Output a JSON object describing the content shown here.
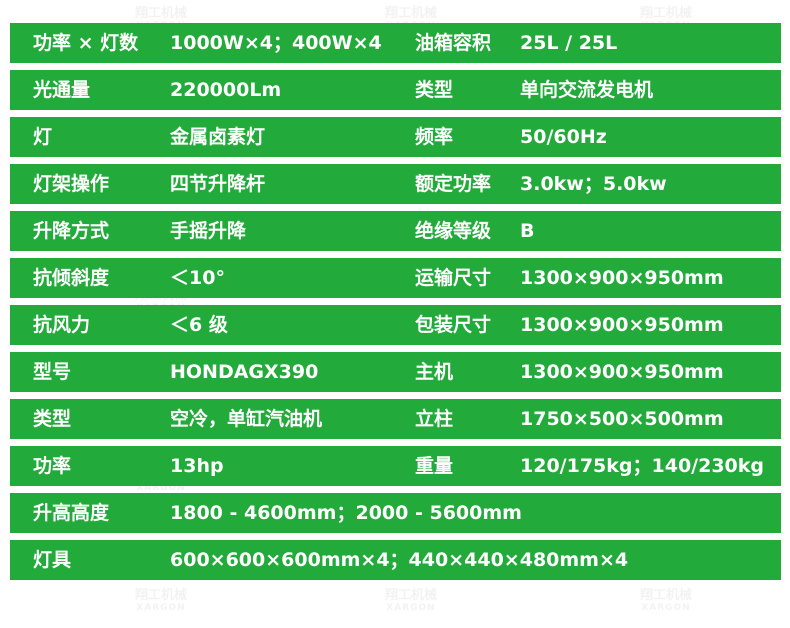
{
  "colors": {
    "row_bg": "#22aa3a",
    "text": "#ffffff"
  },
  "watermark": {
    "name": "翔工机械",
    "brand": "XARGON"
  },
  "rows": [
    {
      "label1": "功率 × 灯数",
      "value1": "1000W×4；400W×4",
      "label2": "油箱容积",
      "value2": "25L / 25L"
    },
    {
      "label1": "光通量",
      "value1": "220000Lm",
      "label2": "类型",
      "value2": "单向交流发电机"
    },
    {
      "label1": "灯",
      "value1": "金属卤素灯",
      "label2": "频率",
      "value2": "50/60Hz"
    },
    {
      "label1": "灯架操作",
      "value1": "四节升降杆",
      "label2": "额定功率",
      "value2": "3.0kw；5.0kw"
    },
    {
      "label1": "升降方式",
      "value1": "手摇升降",
      "label2": "绝缘等级",
      "value2": "B"
    },
    {
      "label1": "抗倾斜度",
      "value1": "＜10°",
      "label2": "运输尺寸",
      "value2": "1300×900×950mm"
    },
    {
      "label1": "抗风力",
      "value1": "＜6 级",
      "label2": "包装尺寸",
      "value2": "1300×900×950mm"
    },
    {
      "label1": "型号",
      "value1": "HONDAGX390",
      "label2": "主机",
      "value2": "1300×900×950mm"
    },
    {
      "label1": "类型",
      "value1": "空冷，单缸汽油机",
      "label2": "立柱",
      "value2": "1750×500×500mm"
    },
    {
      "label1": "功率",
      "value1": "13hp",
      "label2": "重量",
      "value2": "120/175kg；140/230kg"
    },
    {
      "label1": "升高高度",
      "value1": "1800 - 4600mm；2000 - 5600mm"
    },
    {
      "label1": "灯具",
      "value1": "600×600×600mm×4；440×440×480mm×4"
    }
  ]
}
